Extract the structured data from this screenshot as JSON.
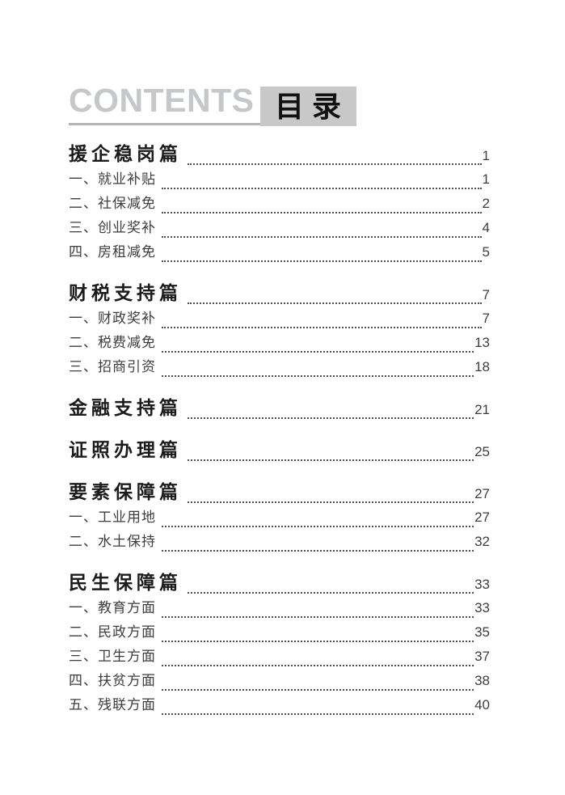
{
  "header": {
    "title_en": "CONTENTS",
    "title_zh": "目录"
  },
  "toc": {
    "sections": [
      {
        "title": "援企稳岗篇",
        "page": "1",
        "items": [
          {
            "label": "一、就业补贴",
            "page": "1"
          },
          {
            "label": "二、社保减免",
            "page": "2"
          },
          {
            "label": "三、创业奖补",
            "page": "4"
          },
          {
            "label": "四、房租减免",
            "page": "5"
          }
        ]
      },
      {
        "title": "财税支持篇",
        "page": "7",
        "items": [
          {
            "label": "一、财政奖补",
            "page": "7"
          },
          {
            "label": "二、税费减免",
            "page": "13"
          },
          {
            "label": "三、招商引资",
            "page": "18"
          }
        ]
      },
      {
        "title": "金融支持篇",
        "page": "21",
        "items": []
      },
      {
        "title": "证照办理篇",
        "page": "25",
        "items": []
      },
      {
        "title": "要素保障篇",
        "page": "27",
        "items": [
          {
            "label": "一、工业用地",
            "page": "27"
          },
          {
            "label": "二、水土保持",
            "page": "32"
          }
        ]
      },
      {
        "title": "民生保障篇",
        "page": "33",
        "items": [
          {
            "label": "一、教育方面",
            "page": "33"
          },
          {
            "label": "二、民政方面",
            "page": "35"
          },
          {
            "label": "三、卫生方面",
            "page": "37"
          },
          {
            "label": "四、扶贫方面",
            "page": "38"
          },
          {
            "label": "五、残联方面",
            "page": "40"
          }
        ]
      }
    ]
  },
  "colors": {
    "title-en": "#c5c7c9",
    "underline": "#b2b4b6",
    "box-bg": "#c8c8c8",
    "box-text": "#111111",
    "heading-text": "#1b1b1b",
    "item-text": "#3d3d3d",
    "dots": "#4f4f4f"
  }
}
